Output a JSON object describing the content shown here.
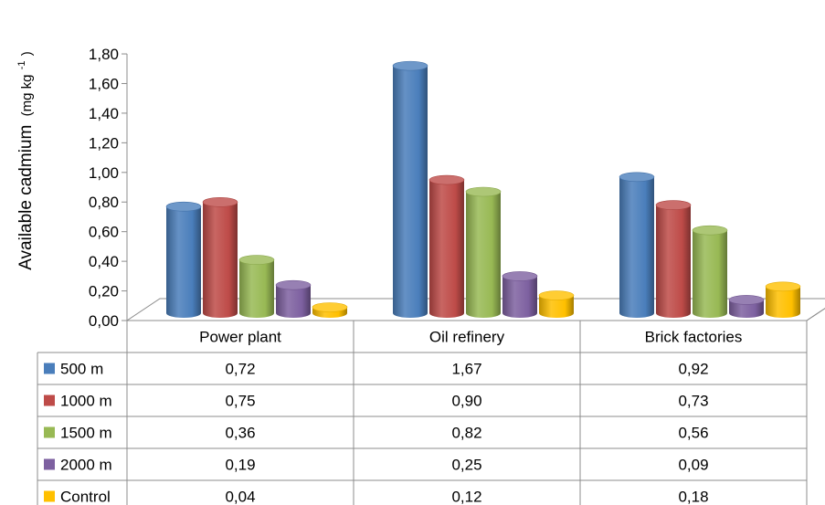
{
  "chart_data": {
    "type": "bar",
    "categories": [
      "Power plant",
      "Oil refinery",
      "Brick factories"
    ],
    "series": [
      {
        "name": "500 m",
        "values": [
          0.72,
          1.67,
          0.92
        ],
        "color": "#4a7ebb"
      },
      {
        "name": "1000 m",
        "values": [
          0.75,
          0.9,
          0.73
        ],
        "color": "#be4b48"
      },
      {
        "name": "1500 m",
        "values": [
          0.36,
          0.82,
          0.56
        ],
        "color": "#98b954"
      },
      {
        "name": "2000 m",
        "values": [
          0.19,
          0.25,
          0.09
        ],
        "color": "#7d60a0"
      },
      {
        "name": "Control",
        "values": [
          0.04,
          0.12,
          0.18
        ],
        "color": "#ffc000"
      }
    ],
    "table_values": [
      [
        "0,72",
        "1,67",
        "0,92"
      ],
      [
        "0,75",
        "0,90",
        "0,73"
      ],
      [
        "0,36",
        "0,82",
        "0,56"
      ],
      [
        "0,19",
        "0,25",
        "0,09"
      ],
      [
        "0,04",
        "0,12",
        "0,18"
      ]
    ],
    "ylabel": "Available cadmium",
    "ylabel_unit": "(mg kg",
    "ylabel_sup": "-1",
    "ylabel_close": ")",
    "ylim": [
      0,
      1.8
    ],
    "yticks": [
      "0,00",
      "0,20",
      "0,40",
      "0,60",
      "0,80",
      "1,00",
      "1,20",
      "1,40",
      "1,60",
      "1,80"
    ],
    "legend_placement": "data-table",
    "grid": false
  }
}
